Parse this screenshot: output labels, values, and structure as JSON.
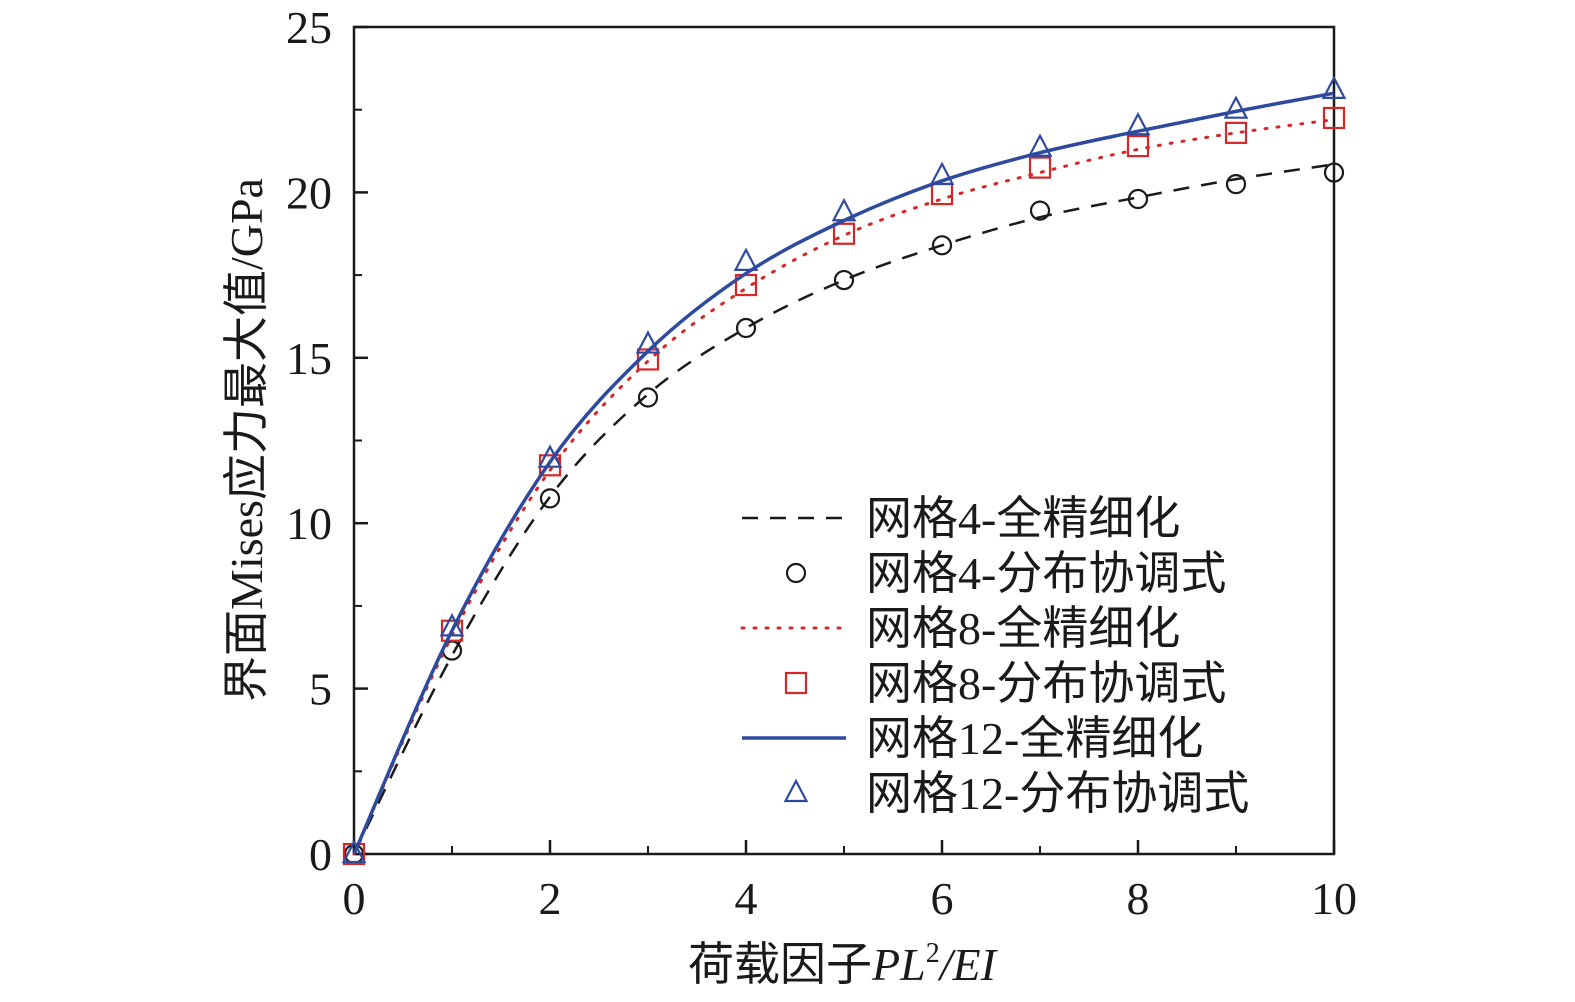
{
  "chart_data": {
    "type": "line",
    "xlabel_main": "荷载因子",
    "xlabel_var1": "PL",
    "xlabel_sup": "2",
    "xlabel_var2": "/EI",
    "ylabel": "界面Mises应力最大值/GPa",
    "xlim": [
      0,
      10
    ],
    "ylim": [
      0,
      25
    ],
    "x_ticks": [
      0,
      2,
      4,
      6,
      8,
      10
    ],
    "y_ticks": [
      0,
      5,
      10,
      15,
      20,
      25
    ],
    "x_minor_ticks": [
      1,
      3,
      5,
      7,
      9
    ],
    "legend_position": "lower-right",
    "series": [
      {
        "name": "网格4-全精细化",
        "style": "dashed",
        "color": "#1a1a1a",
        "x": [
          0,
          1,
          2,
          3,
          4,
          5,
          6,
          7,
          8,
          9,
          10
        ],
        "y": [
          0,
          6.0,
          10.8,
          13.9,
          15.9,
          17.35,
          18.4,
          19.25,
          19.85,
          20.4,
          20.85
        ]
      },
      {
        "name": "网格4-分布协调式",
        "style": "circle",
        "color": "#1a1a1a",
        "x": [
          0,
          1,
          2,
          3,
          4,
          5,
          6,
          7,
          8,
          9,
          10
        ],
        "y": [
          0,
          6.15,
          10.75,
          13.8,
          15.9,
          17.35,
          18.4,
          19.45,
          19.8,
          20.25,
          20.6
        ]
      },
      {
        "name": "网格8-全精细化",
        "style": "dotted",
        "color": "#d62728",
        "x": [
          0,
          1,
          2,
          3,
          4,
          5,
          6,
          7,
          8,
          9,
          10
        ],
        "y": [
          0,
          6.6,
          11.6,
          14.9,
          17.1,
          18.7,
          19.8,
          20.6,
          21.3,
          21.8,
          22.2
        ]
      },
      {
        "name": "网格8-分布协调式",
        "style": "square",
        "color": "#d62728",
        "x": [
          0,
          1,
          2,
          3,
          4,
          5,
          6,
          7,
          8,
          9,
          10
        ],
        "y": [
          0,
          6.75,
          11.75,
          14.95,
          17.2,
          18.75,
          19.95,
          20.75,
          21.4,
          21.8,
          22.25
        ]
      },
      {
        "name": "网格12-全精细化",
        "style": "solid",
        "color": "#2e4a9e",
        "x": [
          0,
          1,
          2,
          3,
          4,
          5,
          6,
          7,
          8,
          9,
          10
        ],
        "y": [
          0,
          6.75,
          11.85,
          15.2,
          17.55,
          19.15,
          20.35,
          21.2,
          21.85,
          22.45,
          23.0
        ]
      },
      {
        "name": "网格12-分布协调式",
        "style": "triangle",
        "color": "#2e4a9e",
        "x": [
          0,
          1,
          2,
          3,
          4,
          5,
          6,
          7,
          8,
          9,
          10
        ],
        "y": [
          0,
          6.85,
          11.95,
          15.4,
          17.9,
          19.4,
          20.5,
          21.35,
          22.0,
          22.5,
          23.1
        ]
      }
    ]
  }
}
